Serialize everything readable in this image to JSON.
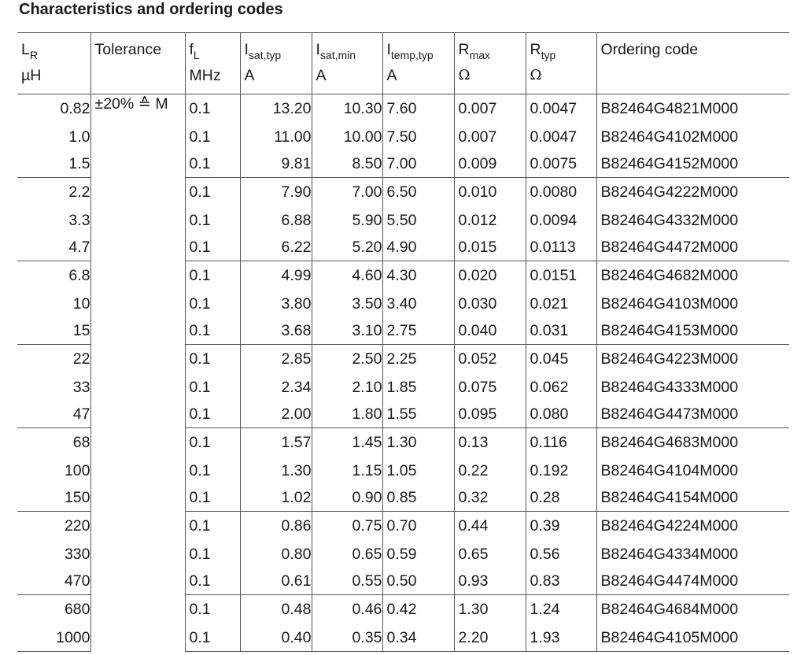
{
  "title": "Characteristics and ordering codes",
  "headers": [
    {
      "main": "L",
      "sub": "R",
      "unit": "µH"
    },
    {
      "main": "Tolerance",
      "sub": "",
      "unit": ""
    },
    {
      "main": "f",
      "sub": "L",
      "unit": "MHz"
    },
    {
      "main": "I",
      "sub": "sat,typ",
      "unit": "A"
    },
    {
      "main": "I",
      "sub": "sat,min",
      "unit": "A"
    },
    {
      "main": "I",
      "sub": "temp,typ",
      "unit": "A"
    },
    {
      "main": "R",
      "sub": "max",
      "unit": "Ω"
    },
    {
      "main": "R",
      "sub": "typ",
      "unit": "Ω"
    },
    {
      "main": "Ordering code",
      "sub": "",
      "unit": ""
    }
  ],
  "tolerance": "±20% ≙ M",
  "rows": [
    {
      "l": "0.82",
      "f": "0.1",
      "isat_typ": "13.20",
      "isat_min": "10.30",
      "itemp": "7.60",
      "rmax": "0.007",
      "rtyp": "0.0047",
      "code": "B82464G4821M000"
    },
    {
      "l": "1.0",
      "f": "0.1",
      "isat_typ": "11.00",
      "isat_min": "10.00",
      "itemp": "7.50",
      "rmax": "0.007",
      "rtyp": "0.0047",
      "code": "B82464G4102M000"
    },
    {
      "l": "1.5",
      "f": "0.1",
      "isat_typ": "9.81",
      "isat_min": "8.50",
      "itemp": "7.00",
      "rmax": "0.009",
      "rtyp": "0.0075",
      "code": "B82464G4152M000"
    },
    {
      "l": "2.2",
      "f": "0.1",
      "isat_typ": "7.90",
      "isat_min": "7.00",
      "itemp": "6.50",
      "rmax": "0.010",
      "rtyp": "0.0080",
      "code": "B82464G4222M000"
    },
    {
      "l": "3.3",
      "f": "0.1",
      "isat_typ": "6.88",
      "isat_min": "5.90",
      "itemp": "5.50",
      "rmax": "0.012",
      "rtyp": "0.0094",
      "code": "B82464G4332M000"
    },
    {
      "l": "4.7",
      "f": "0.1",
      "isat_typ": "6.22",
      "isat_min": "5.20",
      "itemp": "4.90",
      "rmax": "0.015",
      "rtyp": "0.0113",
      "code": "B82464G4472M000"
    },
    {
      "l": "6.8",
      "f": "0.1",
      "isat_typ": "4.99",
      "isat_min": "4.60",
      "itemp": "4.30",
      "rmax": "0.020",
      "rtyp": "0.0151",
      "code": "B82464G4682M000"
    },
    {
      "l": "10",
      "f": "0.1",
      "isat_typ": "3.80",
      "isat_min": "3.50",
      "itemp": "3.40",
      "rmax": "0.030",
      "rtyp": "0.021",
      "code": "B82464G4103M000"
    },
    {
      "l": "15",
      "f": "0.1",
      "isat_typ": "3.68",
      "isat_min": "3.10",
      "itemp": "2.75",
      "rmax": "0.040",
      "rtyp": "0.031",
      "code": "B82464G4153M000"
    },
    {
      "l": "22",
      "f": "0.1",
      "isat_typ": "2.85",
      "isat_min": "2.50",
      "itemp": "2.25",
      "rmax": "0.052",
      "rtyp": "0.045",
      "code": "B82464G4223M000"
    },
    {
      "l": "33",
      "f": "0.1",
      "isat_typ": "2.34",
      "isat_min": "2.10",
      "itemp": "1.85",
      "rmax": "0.075",
      "rtyp": "0.062",
      "code": "B82464G4333M000"
    },
    {
      "l": "47",
      "f": "0.1",
      "isat_typ": "2.00",
      "isat_min": "1.80",
      "itemp": "1.55",
      "rmax": "0.095",
      "rtyp": "0.080",
      "code": "B82464G4473M000"
    },
    {
      "l": "68",
      "f": "0.1",
      "isat_typ": "1.57",
      "isat_min": "1.45",
      "itemp": "1.30",
      "rmax": "0.13",
      "rtyp": "0.116",
      "code": "B82464G4683M000"
    },
    {
      "l": "100",
      "f": "0.1",
      "isat_typ": "1.30",
      "isat_min": "1.15",
      "itemp": "1.05",
      "rmax": "0.22",
      "rtyp": "0.192",
      "code": "B82464G4104M000"
    },
    {
      "l": "150",
      "f": "0.1",
      "isat_typ": "1.02",
      "isat_min": "0.90",
      "itemp": "0.85",
      "rmax": "0.32",
      "rtyp": "0.28",
      "code": "B82464G4154M000"
    },
    {
      "l": "220",
      "f": "0.1",
      "isat_typ": "0.86",
      "isat_min": "0.75",
      "itemp": "0.70",
      "rmax": "0.44",
      "rtyp": "0.39",
      "code": "B82464G4224M000"
    },
    {
      "l": "330",
      "f": "0.1",
      "isat_typ": "0.80",
      "isat_min": "0.65",
      "itemp": "0.59",
      "rmax": "0.65",
      "rtyp": "0.56",
      "code": "B82464G4334M000"
    },
    {
      "l": "470",
      "f": "0.1",
      "isat_typ": "0.61",
      "isat_min": "0.55",
      "itemp": "0.50",
      "rmax": "0.93",
      "rtyp": "0.83",
      "code": "B82464G4474M000"
    },
    {
      "l": "680",
      "f": "0.1",
      "isat_typ": "0.48",
      "isat_min": "0.46",
      "itemp": "0.42",
      "rmax": "1.30",
      "rtyp": "1.24",
      "code": "B82464G4684M000"
    },
    {
      "l": "1000",
      "f": "0.1",
      "isat_typ": "0.40",
      "isat_min": "0.35",
      "itemp": "0.34",
      "rmax": "2.20",
      "rtyp": "1.93",
      "code": "B82464G4105M000"
    }
  ]
}
